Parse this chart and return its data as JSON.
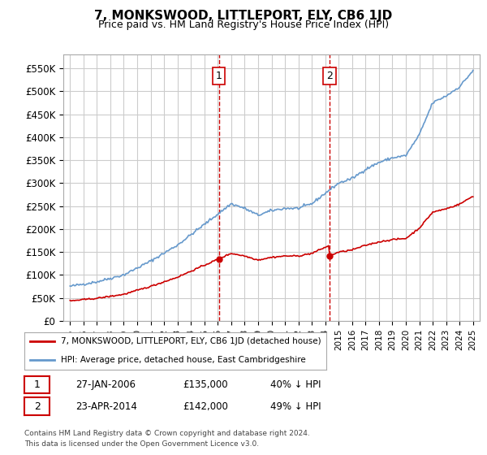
{
  "title": "7, MONKSWOOD, LITTLEPORT, ELY, CB6 1JD",
  "subtitle": "Price paid vs. HM Land Registry's House Price Index (HPI)",
  "ylabel_ticks": [
    "£0",
    "£50K",
    "£100K",
    "£150K",
    "£200K",
    "£250K",
    "£300K",
    "£350K",
    "£400K",
    "£450K",
    "£500K",
    "£550K"
  ],
  "ytick_values": [
    0,
    50000,
    100000,
    150000,
    200000,
    250000,
    300000,
    350000,
    400000,
    450000,
    500000,
    550000
  ],
  "ylim": [
    0,
    580000
  ],
  "hpi_color": "#6699cc",
  "price_color": "#cc0000",
  "vline_color": "#cc0000",
  "marker1_x": 2006.08,
  "marker1_price": 135000,
  "marker1_date": "27-JAN-2006",
  "marker1_pct": "40% ↓ HPI",
  "marker2_x": 2014.32,
  "marker2_price": 142000,
  "marker2_date": "23-APR-2014",
  "marker2_pct": "49% ↓ HPI",
  "legend_line1": "7, MONKSWOOD, LITTLEPORT, ELY, CB6 1JD (detached house)",
  "legend_line2": "HPI: Average price, detached house, East Cambridgeshire",
  "footnote_line1": "Contains HM Land Registry data © Crown copyright and database right 2024.",
  "footnote_line2": "This data is licensed under the Open Government Licence v3.0.",
  "background_color": "#ffffff",
  "grid_color": "#cccccc",
  "hpi_control_pts_x": [
    1995,
    1997,
    1999,
    2001,
    2003,
    2005,
    2007,
    2008,
    2009,
    2010,
    2011,
    2012,
    2013,
    2014,
    2015,
    2016,
    2017,
    2018,
    2019,
    2020,
    2021,
    2022,
    2023,
    2024,
    2025
  ],
  "hpi_control_pts_y": [
    75000,
    85000,
    100000,
    130000,
    165000,
    210000,
    255000,
    245000,
    230000,
    240000,
    245000,
    245000,
    255000,
    278000,
    300000,
    310000,
    330000,
    345000,
    355000,
    360000,
    405000,
    475000,
    490000,
    510000,
    545000
  ]
}
